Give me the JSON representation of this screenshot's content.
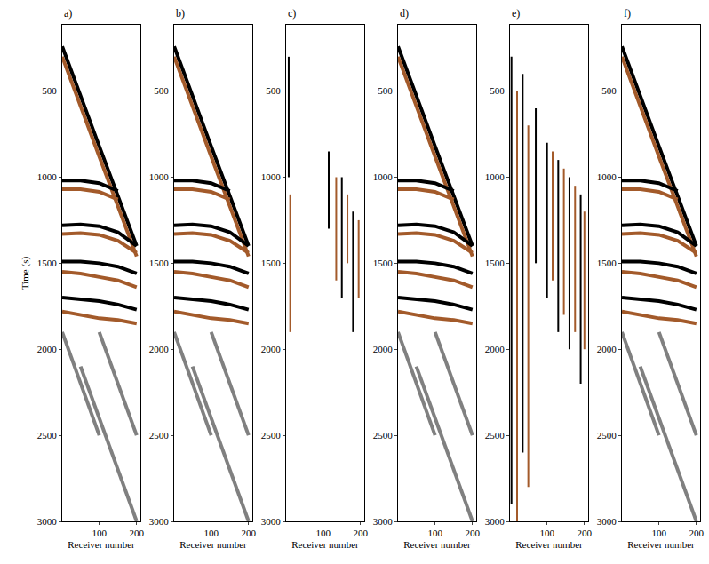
{
  "chart_data": [
    {
      "type": "line",
      "title": "a)",
      "xlabel": "Receiver number",
      "ylabel": "Time (s)",
      "xlim": [
        1,
        210
      ],
      "ylim": [
        115,
        3000
      ],
      "xticks": [
        100,
        200
      ],
      "yticks": [
        500,
        1000,
        1500,
        2000,
        2500,
        3000
      ],
      "grid": false,
      "series": [
        {
          "color": "#000000",
          "x": [
            1,
            50,
            100,
            150,
            200
          ],
          "values": [
            240,
            520,
            820,
            1110,
            1400
          ]
        },
        {
          "color": "#a35a2a",
          "x": [
            1,
            50,
            100,
            150,
            200
          ],
          "values": [
            300,
            580,
            880,
            1170,
            1460
          ]
        },
        {
          "color": "#000000",
          "x": [
            1,
            50,
            100,
            150
          ],
          "values": [
            1020,
            1020,
            1035,
            1080
          ]
        },
        {
          "color": "#a35a2a",
          "x": [
            1,
            50,
            100,
            150
          ],
          "values": [
            1070,
            1070,
            1085,
            1130
          ]
        },
        {
          "color": "#000000",
          "x": [
            1,
            50,
            100,
            150,
            200
          ],
          "values": [
            1280,
            1275,
            1285,
            1320,
            1400
          ]
        },
        {
          "color": "#a35a2a",
          "x": [
            1,
            50,
            100,
            150,
            200
          ],
          "values": [
            1330,
            1325,
            1335,
            1370,
            1440
          ]
        },
        {
          "color": "#000000",
          "x": [
            1,
            50,
            100,
            150,
            200
          ],
          "values": [
            1490,
            1490,
            1500,
            1520,
            1560
          ]
        },
        {
          "color": "#a35a2a",
          "x": [
            1,
            50,
            100,
            150,
            200
          ],
          "values": [
            1550,
            1560,
            1580,
            1600,
            1640
          ]
        },
        {
          "color": "#000000",
          "x": [
            1,
            50,
            100,
            150,
            200
          ],
          "values": [
            1700,
            1710,
            1720,
            1740,
            1770
          ]
        },
        {
          "color": "#a35a2a",
          "x": [
            1,
            50,
            100,
            150,
            200
          ],
          "values": [
            1780,
            1800,
            1820,
            1830,
            1850
          ]
        },
        {
          "color": "#808080",
          "x": [
            1,
            100
          ],
          "values": [
            1900,
            2500
          ]
        },
        {
          "color": "#808080",
          "x": [
            50,
            200
          ],
          "values": [
            2100,
            3000
          ]
        },
        {
          "color": "#808080",
          "x": [
            100,
            200
          ],
          "values": [
            1900,
            2500
          ]
        }
      ]
    },
    {
      "type": "line",
      "title": "b)",
      "xlabel": "Receiver number",
      "xlim": [
        1,
        210
      ],
      "ylim": [
        115,
        3000
      ],
      "xticks": [
        100,
        200
      ],
      "yticks": [
        500,
        1000,
        1500,
        2000,
        2500,
        3000
      ],
      "grid": false,
      "series": [
        {
          "color": "#000000",
          "x": [
            1,
            50,
            100,
            150,
            200
          ],
          "values": [
            240,
            520,
            820,
            1110,
            1400
          ]
        },
        {
          "color": "#a35a2a",
          "x": [
            1,
            50,
            100,
            150,
            200
          ],
          "values": [
            300,
            580,
            880,
            1170,
            1460
          ]
        },
        {
          "color": "#000000",
          "x": [
            1,
            50,
            100,
            150
          ],
          "values": [
            1020,
            1020,
            1035,
            1080
          ]
        },
        {
          "color": "#a35a2a",
          "x": [
            1,
            50,
            100,
            150
          ],
          "values": [
            1070,
            1070,
            1085,
            1130
          ]
        },
        {
          "color": "#000000",
          "x": [
            1,
            50,
            100,
            150,
            200
          ],
          "values": [
            1280,
            1275,
            1285,
            1320,
            1400
          ]
        },
        {
          "color": "#a35a2a",
          "x": [
            1,
            50,
            100,
            150,
            200
          ],
          "values": [
            1330,
            1325,
            1335,
            1370,
            1440
          ]
        },
        {
          "color": "#000000",
          "x": [
            1,
            50,
            100,
            150,
            200
          ],
          "values": [
            1490,
            1490,
            1500,
            1520,
            1560
          ]
        },
        {
          "color": "#a35a2a",
          "x": [
            1,
            50,
            100,
            150,
            200
          ],
          "values": [
            1550,
            1560,
            1580,
            1600,
            1640
          ]
        },
        {
          "color": "#000000",
          "x": [
            1,
            50,
            100,
            150,
            200
          ],
          "values": [
            1700,
            1710,
            1720,
            1740,
            1770
          ]
        },
        {
          "color": "#a35a2a",
          "x": [
            1,
            50,
            100,
            150,
            200
          ],
          "values": [
            1780,
            1800,
            1820,
            1830,
            1850
          ]
        },
        {
          "color": "#808080",
          "x": [
            1,
            100
          ],
          "values": [
            1900,
            2500
          ]
        },
        {
          "color": "#808080",
          "x": [
            50,
            200
          ],
          "values": [
            2100,
            3000
          ]
        },
        {
          "color": "#808080",
          "x": [
            100,
            200
          ],
          "values": [
            1900,
            2500
          ]
        }
      ]
    },
    {
      "type": "line",
      "title": "c)",
      "xlabel": "Receiver number",
      "xlim": [
        1,
        210
      ],
      "ylim": [
        115,
        3000
      ],
      "xticks": [
        100,
        200
      ],
      "yticks": [
        500,
        1000,
        1500,
        2000,
        2500,
        3000
      ],
      "grid": false,
      "series": [
        {
          "color": "#000000",
          "x": [
            8,
            8,
            null,
            115,
            115,
            null,
            150,
            150,
            null,
            180,
            180
          ],
          "values": [
            300,
            1000,
            null,
            850,
            1300,
            null,
            1000,
            1700,
            null,
            1200,
            1900
          ]
        },
        {
          "color": "#a35a2a",
          "x": [
            12,
            12,
            null,
            135,
            135,
            null,
            165,
            165,
            null,
            195,
            195
          ],
          "values": [
            1100,
            1900,
            null,
            1000,
            1600,
            null,
            1100,
            1500,
            null,
            1250,
            1700
          ]
        }
      ]
    },
    {
      "type": "line",
      "title": "d)",
      "xlabel": "Receiver number",
      "xlim": [
        1,
        210
      ],
      "ylim": [
        115,
        3000
      ],
      "xticks": [
        100,
        200
      ],
      "yticks": [
        500,
        1000,
        1500,
        2000,
        2500,
        3000
      ],
      "grid": false,
      "series": [
        {
          "color": "#000000",
          "x": [
            1,
            50,
            100,
            150,
            200
          ],
          "values": [
            240,
            520,
            820,
            1110,
            1400
          ]
        },
        {
          "color": "#a35a2a",
          "x": [
            1,
            50,
            100,
            150,
            200
          ],
          "values": [
            300,
            580,
            880,
            1170,
            1460
          ]
        },
        {
          "color": "#000000",
          "x": [
            1,
            50,
            100,
            150
          ],
          "values": [
            1020,
            1020,
            1035,
            1080
          ]
        },
        {
          "color": "#a35a2a",
          "x": [
            1,
            50,
            100,
            150
          ],
          "values": [
            1070,
            1070,
            1085,
            1130
          ]
        },
        {
          "color": "#000000",
          "x": [
            1,
            50,
            100,
            150,
            200
          ],
          "values": [
            1280,
            1275,
            1285,
            1320,
            1400
          ]
        },
        {
          "color": "#a35a2a",
          "x": [
            1,
            50,
            100,
            150,
            200
          ],
          "values": [
            1330,
            1325,
            1335,
            1370,
            1440
          ]
        },
        {
          "color": "#000000",
          "x": [
            1,
            50,
            100,
            150,
            200
          ],
          "values": [
            1490,
            1490,
            1500,
            1520,
            1560
          ]
        },
        {
          "color": "#a35a2a",
          "x": [
            1,
            50,
            100,
            150,
            200
          ],
          "values": [
            1550,
            1560,
            1580,
            1600,
            1640
          ]
        },
        {
          "color": "#000000",
          "x": [
            1,
            50,
            100,
            150,
            200
          ],
          "values": [
            1700,
            1710,
            1720,
            1740,
            1770
          ]
        },
        {
          "color": "#a35a2a",
          "x": [
            1,
            50,
            100,
            150,
            200
          ],
          "values": [
            1780,
            1800,
            1820,
            1830,
            1850
          ]
        },
        {
          "color": "#808080",
          "x": [
            1,
            100
          ],
          "values": [
            1900,
            2500
          ]
        },
        {
          "color": "#808080",
          "x": [
            50,
            200
          ],
          "values": [
            2100,
            3000
          ]
        },
        {
          "color": "#808080",
          "x": [
            100,
            200
          ],
          "values": [
            1900,
            2500
          ]
        }
      ]
    },
    {
      "type": "line",
      "title": "e)",
      "xlabel": "Receiver number",
      "xlim": [
        1,
        210
      ],
      "ylim": [
        115,
        3000
      ],
      "xticks": [
        100,
        200
      ],
      "yticks": [
        500,
        1000,
        1500,
        2000,
        2500,
        3000
      ],
      "grid": false,
      "series": [
        {
          "color": "#000000",
          "x": [
            5,
            5,
            null,
            35,
            35,
            null,
            70,
            70,
            null,
            100,
            100,
            null,
            130,
            130,
            null,
            160,
            160,
            null,
            190,
            190
          ],
          "values": [
            300,
            2900,
            null,
            400,
            2600,
            null,
            600,
            1500,
            null,
            800,
            1700,
            null,
            900,
            1900,
            null,
            1000,
            2000,
            null,
            1100,
            2200
          ]
        },
        {
          "color": "#a35a2a",
          "x": [
            20,
            20,
            null,
            50,
            50,
            null,
            115,
            115,
            null,
            145,
            145,
            null,
            175,
            175,
            null,
            200,
            200
          ],
          "values": [
            500,
            3000,
            null,
            700,
            2800,
            null,
            850,
            1600,
            null,
            950,
            1800,
            null,
            1050,
            1900,
            null,
            1200,
            2000
          ]
        }
      ]
    },
    {
      "type": "line",
      "title": "f)",
      "xlabel": "Receiver number",
      "xlim": [
        1,
        210
      ],
      "ylim": [
        115,
        3000
      ],
      "xticks": [
        100,
        200
      ],
      "yticks": [
        500,
        1000,
        1500,
        2000,
        2500,
        3000
      ],
      "grid": false,
      "series": [
        {
          "color": "#000000",
          "x": [
            1,
            50,
            100,
            150,
            200
          ],
          "values": [
            240,
            520,
            820,
            1110,
            1400
          ]
        },
        {
          "color": "#a35a2a",
          "x": [
            1,
            50,
            100,
            150,
            200
          ],
          "values": [
            300,
            580,
            880,
            1170,
            1460
          ]
        },
        {
          "color": "#000000",
          "x": [
            1,
            50,
            100,
            150
          ],
          "values": [
            1020,
            1020,
            1035,
            1080
          ]
        },
        {
          "color": "#a35a2a",
          "x": [
            1,
            50,
            100,
            150
          ],
          "values": [
            1070,
            1070,
            1085,
            1130
          ]
        },
        {
          "color": "#000000",
          "x": [
            1,
            50,
            100,
            150,
            200
          ],
          "values": [
            1280,
            1275,
            1285,
            1320,
            1400
          ]
        },
        {
          "color": "#a35a2a",
          "x": [
            1,
            50,
            100,
            150,
            200
          ],
          "values": [
            1330,
            1325,
            1335,
            1370,
            1440
          ]
        },
        {
          "color": "#000000",
          "x": [
            1,
            50,
            100,
            150,
            200
          ],
          "values": [
            1490,
            1490,
            1500,
            1520,
            1560
          ]
        },
        {
          "color": "#a35a2a",
          "x": [
            1,
            50,
            100,
            150,
            200
          ],
          "values": [
            1550,
            1560,
            1580,
            1600,
            1640
          ]
        },
        {
          "color": "#000000",
          "x": [
            1,
            50,
            100,
            150,
            200
          ],
          "values": [
            1700,
            1710,
            1720,
            1740,
            1770
          ]
        },
        {
          "color": "#a35a2a",
          "x": [
            1,
            50,
            100,
            150,
            200
          ],
          "values": [
            1780,
            1800,
            1820,
            1830,
            1850
          ]
        },
        {
          "color": "#808080",
          "x": [
            1,
            100
          ],
          "values": [
            1900,
            2500
          ]
        },
        {
          "color": "#808080",
          "x": [
            50,
            200
          ],
          "values": [
            2100,
            3000
          ]
        },
        {
          "color": "#808080",
          "x": [
            100,
            200
          ],
          "values": [
            1900,
            2500
          ]
        }
      ]
    }
  ]
}
